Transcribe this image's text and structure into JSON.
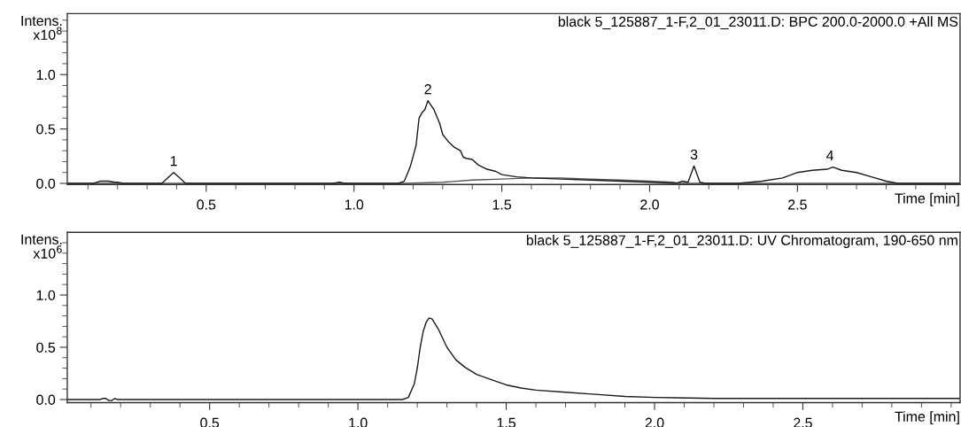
{
  "chart_data": [
    {
      "type": "line",
      "title": "black 5_125887_1-F,2_01_23011.D: BPC 200.0-2000.0 +All MS",
      "xlabel": "Time [min]",
      "ylabel": "Intens.\nx10$^{8}$",
      "xlim": [
        0.03,
        3.05
      ],
      "ylim": [
        -0.01,
        1.56
      ],
      "xticks": [
        {
          "value": 0.1,
          "label": null
        },
        {
          "value": 0.2,
          "label": null
        },
        {
          "value": 0.3,
          "label": null
        },
        {
          "value": 0.4,
          "label": null
        },
        0.5,
        {
          "value": 0.6,
          "label": null
        },
        {
          "value": 0.7,
          "label": null
        },
        {
          "value": 0.8,
          "label": null
        },
        {
          "value": 0.9,
          "label": null
        },
        {
          "value": 1,
          "label": "1.0"
        },
        {
          "value": 1.1,
          "label": null
        },
        {
          "value": 1.2,
          "label": null
        },
        {
          "value": 1.3,
          "label": null
        },
        {
          "value": 1.4,
          "label": null
        },
        1.5,
        {
          "value": 1.6,
          "label": null
        },
        {
          "value": 1.7,
          "label": null
        },
        {
          "value": 1.8,
          "label": null
        },
        {
          "value": 1.9,
          "label": null
        },
        {
          "value": 2,
          "label": "2.0"
        },
        {
          "value": 2.1,
          "label": null
        },
        {
          "value": 2.2,
          "label": null
        },
        {
          "value": 2.3,
          "label": null
        },
        {
          "value": 2.4,
          "label": null
        },
        2.5,
        {
          "value": 2.6,
          "label": null
        },
        {
          "value": 2.7,
          "label": null
        },
        {
          "value": 2.8,
          "label": null
        },
        {
          "value": 2.9,
          "label": null
        },
        {
          "value": 3,
          "label": null
        }
      ],
      "yticks": [
        {
          "value": 0,
          "label": "0.0"
        },
        {
          "value": 0.1,
          "label": null
        },
        {
          "value": 0.2,
          "label": null
        },
        {
          "value": 0.3,
          "label": null
        },
        {
          "value": 0.4,
          "label": null
        },
        0.5,
        {
          "value": 0.6,
          "label": null
        },
        {
          "value": 0.7,
          "label": null
        },
        {
          "value": 0.8,
          "label": null
        },
        {
          "value": 0.9,
          "label": null
        },
        {
          "value": 1,
          "label": "1.0"
        },
        {
          "value": 1.1,
          "label": null
        },
        {
          "value": 1.2,
          "label": null
        },
        {
          "value": 1.3,
          "label": null
        },
        {
          "value": 1.4,
          "label": null
        },
        {
          "value": 1.5,
          "label": null
        }
      ],
      "grid": false,
      "legend": false,
      "marker": "none",
      "line_style": "solid",
      "annotations": [
        {
          "text": "1",
          "x": 0.39,
          "y": 0.1
        },
        {
          "text": "2",
          "x": 1.25,
          "y": 0.76
        },
        {
          "text": "3",
          "x": 2.15,
          "y": 0.16
        },
        {
          "text": "4",
          "x": 2.61,
          "y": 0.15
        }
      ],
      "series": [
        {
          "color": "#555555",
          "x": [
            0.03,
            1.17,
            1.3,
            1.4,
            1.5,
            1.6,
            1.7,
            1.8,
            1.9,
            2.0,
            2.08,
            2.1,
            3.05
          ],
          "values": [
            0,
            0,
            0.01,
            0.03,
            0.04,
            0.05,
            0.05,
            0.04,
            0.03,
            0.02,
            0.01,
            0,
            0
          ]
        },
        {
          "color": "#1a1a1a",
          "x": [
            0.03,
            0.12,
            0.14,
            0.17,
            0.19,
            0.2,
            0.22,
            0.35,
            0.37,
            0.39,
            0.41,
            0.43,
            0.93,
            0.95,
            0.97,
            1.15,
            1.17,
            1.19,
            1.21,
            1.22,
            1.23,
            1.24,
            1.25,
            1.26,
            1.27,
            1.29,
            1.3,
            1.32,
            1.34,
            1.36,
            1.37,
            1.38,
            1.4,
            1.42,
            1.45,
            1.48,
            1.5,
            1.55,
            1.6,
            1.7,
            1.8,
            1.9,
            2.0,
            2.09,
            2.11,
            2.13,
            2.15,
            2.17,
            2.19,
            2.3,
            2.38,
            2.45,
            2.5,
            2.55,
            2.6,
            2.62,
            2.65,
            2.7,
            2.75,
            2.8,
            2.84,
            3.05
          ],
          "values": [
            0,
            0,
            0.02,
            0.02,
            0.01,
            0.01,
            0,
            0,
            0.05,
            0.1,
            0.05,
            0,
            0,
            0.01,
            0,
            0,
            0.02,
            0.15,
            0.35,
            0.6,
            0.65,
            0.68,
            0.76,
            0.72,
            0.68,
            0.55,
            0.45,
            0.38,
            0.33,
            0.3,
            0.24,
            0.23,
            0.22,
            0.17,
            0.13,
            0.11,
            0.08,
            0.06,
            0.05,
            0.04,
            0.03,
            0.02,
            0.01,
            0,
            0.02,
            0.01,
            0.16,
            0.01,
            0,
            0,
            0.02,
            0.05,
            0.1,
            0.12,
            0.13,
            0.15,
            0.12,
            0.1,
            0.06,
            0.02,
            0,
            0
          ]
        }
      ]
    },
    {
      "type": "line",
      "title": "black 5_125887_1-F,2_01_23011.D: UV Chromatogram, 190-650 nm",
      "xlabel": "Time [min]",
      "ylabel": "Intens.\nx10$^{6}$",
      "xlim": [
        0.02,
        3.03
      ],
      "ylim": [
        -0.03,
        1.6
      ],
      "xticks": [
        {
          "value": 0.1,
          "label": null
        },
        {
          "value": 0.2,
          "label": null
        },
        {
          "value": 0.3,
          "label": null
        },
        {
          "value": 0.4,
          "label": null
        },
        0.5,
        {
          "value": 0.6,
          "label": null
        },
        {
          "value": 0.7,
          "label": null
        },
        {
          "value": 0.8,
          "label": null
        },
        {
          "value": 0.9,
          "label": null
        },
        {
          "value": 1,
          "label": "1.0"
        },
        {
          "value": 1.1,
          "label": null
        },
        {
          "value": 1.2,
          "label": null
        },
        {
          "value": 1.3,
          "label": null
        },
        {
          "value": 1.4,
          "label": null
        },
        1.5,
        {
          "value": 1.6,
          "label": null
        },
        {
          "value": 1.7,
          "label": null
        },
        {
          "value": 1.8,
          "label": null
        },
        {
          "value": 1.9,
          "label": null
        },
        {
          "value": 2,
          "label": "2.0"
        },
        {
          "value": 2.1,
          "label": null
        },
        {
          "value": 2.2,
          "label": null
        },
        {
          "value": 2.3,
          "label": null
        },
        {
          "value": 2.4,
          "label": null
        },
        2.5,
        {
          "value": 2.6,
          "label": null
        },
        {
          "value": 2.7,
          "label": null
        },
        {
          "value": 2.8,
          "label": null
        },
        {
          "value": 2.9,
          "label": null
        },
        {
          "value": 3,
          "label": null
        }
      ],
      "yticks": [
        {
          "value": 0,
          "label": "0.0"
        },
        {
          "value": 0.1,
          "label": null
        },
        {
          "value": 0.2,
          "label": null
        },
        {
          "value": 0.3,
          "label": null
        },
        {
          "value": 0.4,
          "label": null
        },
        0.5,
        {
          "value": 0.6,
          "label": null
        },
        {
          "value": 0.7,
          "label": null
        },
        {
          "value": 0.8,
          "label": null
        },
        {
          "value": 0.9,
          "label": null
        },
        {
          "value": 1,
          "label": "1.0"
        },
        {
          "value": 1.1,
          "label": null
        },
        {
          "value": 1.2,
          "label": null
        },
        {
          "value": 1.3,
          "label": null
        },
        {
          "value": 1.4,
          "label": null
        },
        {
          "value": 1.5,
          "label": null
        }
      ],
      "grid": false,
      "legend": false,
      "marker": "none",
      "line_style": "solid",
      "series": [
        {
          "color": "#1a1a1a",
          "x": [
            0.02,
            0.13,
            0.14,
            0.15,
            0.16,
            0.17,
            0.18,
            0.19,
            1.15,
            1.17,
            1.19,
            1.2,
            1.21,
            1.22,
            1.23,
            1.24,
            1.25,
            1.27,
            1.3,
            1.33,
            1.36,
            1.4,
            1.45,
            1.5,
            1.55,
            1.6,
            1.7,
            1.8,
            1.9,
            2.0,
            2.2,
            2.5,
            2.9,
            2.95,
            3.03
          ],
          "values": [
            0,
            0,
            0.01,
            0.01,
            -0.01,
            -0.01,
            0.01,
            0,
            0,
            0.02,
            0.15,
            0.3,
            0.5,
            0.65,
            0.74,
            0.78,
            0.77,
            0.68,
            0.5,
            0.38,
            0.31,
            0.24,
            0.19,
            0.14,
            0.11,
            0.09,
            0.07,
            0.05,
            0.03,
            0.02,
            0.01,
            0.01,
            0.01,
            0.01,
            0.01
          ]
        }
      ]
    }
  ]
}
